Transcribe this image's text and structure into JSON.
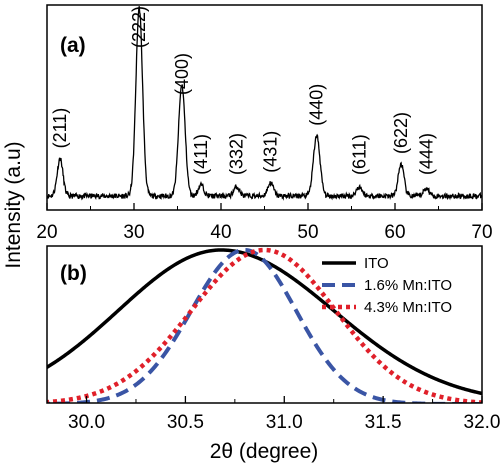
{
  "chart_data": [
    {
      "panel": "(a)",
      "type": "line",
      "xlim": [
        20,
        70
      ],
      "x_ticks": [
        20,
        30,
        40,
        50,
        60,
        70
      ],
      "grid": false,
      "style": {
        "color": "#000000"
      },
      "peaks": [
        {
          "label": "(211)",
          "x": 21.5,
          "height": 0.2
        },
        {
          "label": "(222)",
          "x": 30.6,
          "height": 1.0
        },
        {
          "label": "(400)",
          "x": 35.5,
          "height": 0.59
        },
        {
          "label": "(411)",
          "x": 37.7,
          "height": 0.06
        },
        {
          "label": "(332)",
          "x": 41.8,
          "height": 0.05
        },
        {
          "label": "(431)",
          "x": 45.7,
          "height": 0.07
        },
        {
          "label": "(440)",
          "x": 51.0,
          "height": 0.32
        },
        {
          "label": "(611)",
          "x": 55.9,
          "height": 0.05
        },
        {
          "label": "(622)",
          "x": 60.7,
          "height": 0.17
        },
        {
          "label": "(444)",
          "x": 63.6,
          "height": 0.04
        }
      ]
    },
    {
      "panel": "(b)",
      "type": "line",
      "xlim": [
        29.8,
        32.0
      ],
      "x_ticks": [
        "30.0",
        "30.5",
        "31.0",
        "31.5",
        "32.0"
      ],
      "xlabel": "2θ (degree)",
      "grid": false,
      "legend_position": "top-right",
      "series": [
        {
          "name": "ITO",
          "style": "solid",
          "color": "#000000",
          "center": 30.68,
          "width_left": 0.52,
          "width_right": 0.57
        },
        {
          "name": "1.6% Mn:ITO",
          "style": "dashed",
          "color": "#3a55a5",
          "center": 30.8,
          "width_left": 0.27,
          "width_right": 0.26
        },
        {
          "name": "4.3% Mn:ITO",
          "style": "dotted",
          "color": "#e0202a",
          "center": 30.9,
          "width_left": 0.37,
          "width_right": 0.36
        }
      ]
    }
  ],
  "shared": {
    "ylabel": "Intensity (a.u)"
  }
}
